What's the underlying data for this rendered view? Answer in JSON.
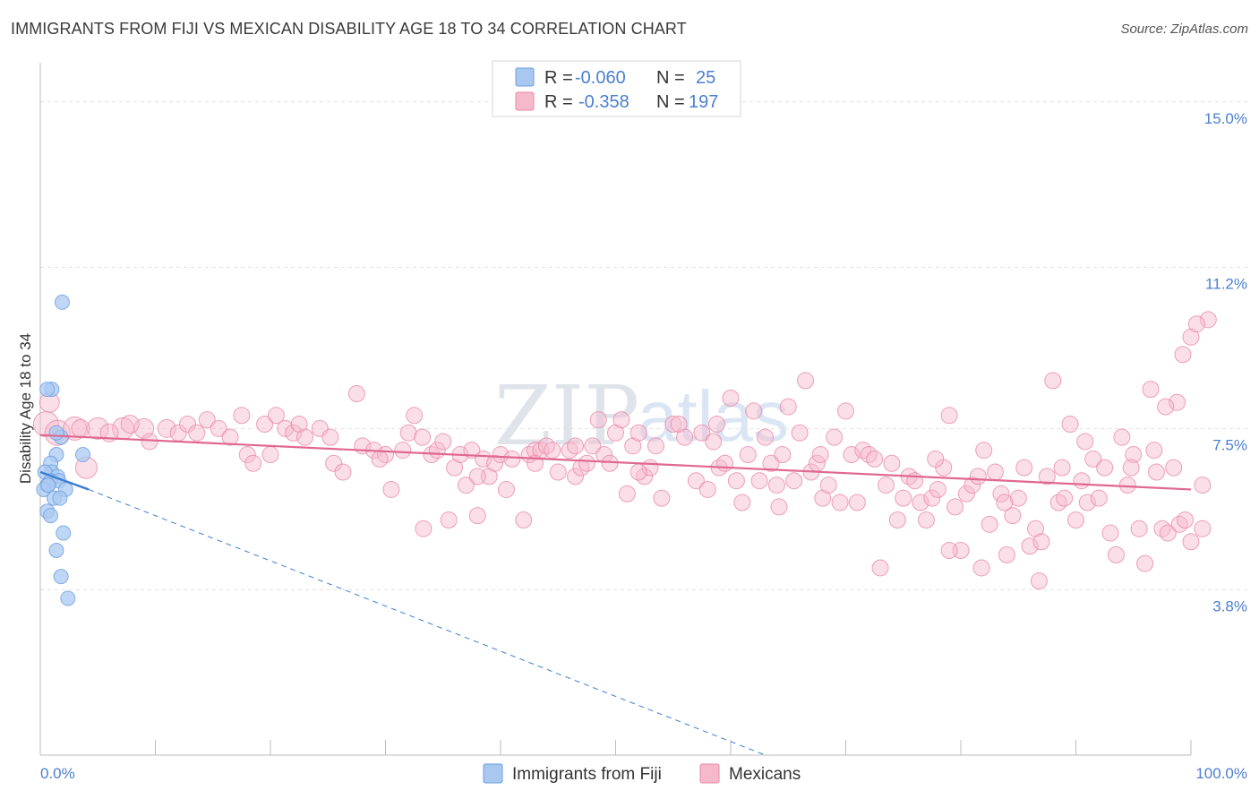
{
  "title": "IMMIGRANTS FROM FIJI VS MEXICAN DISABILITY AGE 18 TO 34 CORRELATION CHART",
  "source": "Source: ZipAtlas.com",
  "watermark": {
    "zip": "ZIP",
    "atlas": "atlas"
  },
  "stats_box": {
    "rows": [
      {
        "r_label": "R =",
        "r_value": "-0.060",
        "n_label": "N =",
        "n_value": "25",
        "color": "#a9c8f0",
        "stroke": "#6a9ee0"
      },
      {
        "r_label": "R =",
        "r_value": "-0.358",
        "n_label": "N =",
        "n_value": "197",
        "color": "#f6b8cb",
        "stroke": "#ea8aa8"
      }
    ]
  },
  "legend": {
    "items": [
      {
        "label": "Immigrants from Fiji",
        "color": "#a9c8f0",
        "stroke": "#6a9ee0"
      },
      {
        "label": "Mexicans",
        "color": "#f6b8cb",
        "stroke": "#ea8aa8"
      }
    ]
  },
  "chart_data": {
    "type": "scatter",
    "title": "IMMIGRANTS FROM FIJI VS MEXICAN DISABILITY AGE 18 TO 34 CORRELATION CHART",
    "xlabel": "",
    "ylabel": "Disability Age 18 to 34",
    "xlim": [
      0,
      100
    ],
    "ylim": [
      0,
      15.9
    ],
    "x_tick_labels": [
      "0.0%",
      "100.0%"
    ],
    "y_ticks": [
      3.8,
      7.5,
      11.2,
      15.0
    ],
    "y_tick_labels": [
      "3.8%",
      "7.5%",
      "11.2%",
      "15.0%"
    ],
    "grid": true,
    "legend_position": "bottom-center",
    "series": [
      {
        "name": "Immigrants from Fiji",
        "color": "#a9c8f0",
        "stroke": "#6a9ee0",
        "trend_color": "#3b7fd6",
        "R": -0.06,
        "N": 25,
        "trend": {
          "x0": 0,
          "y0": 6.5,
          "x1": 4.2,
          "y1": 6.1,
          "dashed_to_x": 63,
          "dashed_to_y": 0
        },
        "points": [
          [
            1.9,
            10.4
          ],
          [
            1.0,
            8.4
          ],
          [
            0.6,
            8.4
          ],
          [
            1.8,
            7.3
          ],
          [
            1.4,
            7.4
          ],
          [
            3.7,
            6.9
          ],
          [
            1.4,
            6.9
          ],
          [
            0.9,
            6.7
          ],
          [
            1.0,
            6.5
          ],
          [
            0.4,
            6.5
          ],
          [
            1.5,
            6.4
          ],
          [
            0.9,
            6.3
          ],
          [
            1.6,
            6.3
          ],
          [
            0.6,
            6.2
          ],
          [
            2.2,
            6.1
          ],
          [
            0.3,
            6.1
          ],
          [
            0.7,
            6.2
          ],
          [
            1.2,
            5.9
          ],
          [
            1.7,
            5.9
          ],
          [
            0.6,
            5.6
          ],
          [
            0.9,
            5.5
          ],
          [
            2.0,
            5.1
          ],
          [
            1.4,
            4.7
          ],
          [
            1.8,
            4.1
          ],
          [
            2.4,
            3.6
          ]
        ]
      },
      {
        "name": "Mexicans",
        "color": "#f6b8cb",
        "stroke": "#ea8aa8",
        "trend_color": "#e06890",
        "R": -0.358,
        "N": 197,
        "trend": {
          "x0": 0,
          "y0": 7.35,
          "x1": 100,
          "y1": 6.1
        },
        "points": [
          [
            0.5,
            7.6,
            14
          ],
          [
            1.5,
            7.4,
            14
          ],
          [
            3.0,
            7.5,
            13
          ],
          [
            5.0,
            7.5,
            12
          ],
          [
            7.2,
            7.5,
            12
          ],
          [
            9.0,
            7.5,
            11
          ],
          [
            0.8,
            8.1,
            11
          ],
          [
            4.0,
            6.6,
            12
          ],
          [
            3.5,
            7.5,
            10
          ],
          [
            6.0,
            7.4,
            10
          ],
          [
            7.8,
            7.6,
            10
          ],
          [
            9.5,
            7.2,
            9
          ],
          [
            11.0,
            7.5,
            10
          ],
          [
            12.0,
            7.4,
            9
          ],
          [
            12.8,
            7.6,
            9
          ],
          [
            13.6,
            7.4,
            9
          ],
          [
            14.5,
            7.7,
            9
          ],
          [
            15.5,
            7.5,
            9
          ],
          [
            16.5,
            7.3,
            9
          ],
          [
            17.5,
            7.8,
            9
          ],
          [
            18.0,
            6.9,
            9
          ],
          [
            18.5,
            6.7,
            9
          ],
          [
            19.5,
            7.6,
            9
          ],
          [
            20.0,
            6.9,
            9
          ],
          [
            20.5,
            7.8,
            9
          ],
          [
            21.3,
            7.5,
            9
          ],
          [
            22.0,
            7.4,
            9
          ],
          [
            22.5,
            7.6,
            9
          ],
          [
            23.0,
            7.3,
            9
          ],
          [
            24.3,
            7.5,
            9
          ],
          [
            25.2,
            7.3,
            9
          ],
          [
            25.5,
            6.7,
            9
          ],
          [
            26.3,
            6.5,
            9
          ],
          [
            27.5,
            8.3,
            9
          ],
          [
            28.0,
            7.1,
            9
          ],
          [
            29.0,
            7.0,
            9
          ],
          [
            30.0,
            6.9,
            9
          ],
          [
            30.5,
            6.1,
            9
          ],
          [
            31.5,
            7.0,
            9
          ],
          [
            32.0,
            7.4,
            9
          ],
          [
            32.5,
            7.8,
            9
          ],
          [
            33.2,
            7.3,
            9
          ],
          [
            34.0,
            6.9,
            9
          ],
          [
            34.5,
            7.0,
            9
          ],
          [
            35.0,
            7.2,
            9
          ],
          [
            35.5,
            5.4,
            9
          ],
          [
            36.0,
            6.6,
            9
          ],
          [
            36.5,
            6.9,
            9
          ],
          [
            37.0,
            6.2,
            9
          ],
          [
            37.5,
            7.0,
            9
          ],
          [
            38.0,
            5.5,
            9
          ],
          [
            38.5,
            6.8,
            9
          ],
          [
            39.0,
            6.4,
            9
          ],
          [
            39.5,
            6.7,
            9
          ],
          [
            40.0,
            6.9,
            9
          ],
          [
            40.5,
            6.1,
            9
          ],
          [
            41.0,
            6.8,
            9
          ],
          [
            42.0,
            5.4,
            9
          ],
          [
            42.5,
            6.9,
            9
          ],
          [
            43.0,
            7.0,
            9
          ],
          [
            43.5,
            7.0,
            9
          ],
          [
            44.0,
            7.1,
            9
          ],
          [
            44.5,
            7.0,
            9
          ],
          [
            45.0,
            6.5,
            9
          ],
          [
            46.0,
            7.0,
            9
          ],
          [
            46.5,
            6.4,
            9
          ],
          [
            47.0,
            6.6,
            9
          ],
          [
            47.5,
            6.7,
            9
          ],
          [
            48.0,
            7.1,
            9
          ],
          [
            48.5,
            7.7,
            9
          ],
          [
            49.0,
            6.9,
            9
          ],
          [
            49.5,
            6.7,
            9
          ],
          [
            50.0,
            7.4,
            9
          ],
          [
            50.5,
            7.7,
            9
          ],
          [
            51.0,
            6.0,
            9
          ],
          [
            51.5,
            7.1,
            9
          ],
          [
            52.0,
            7.4,
            9
          ],
          [
            52.5,
            6.4,
            9
          ],
          [
            53.0,
            6.6,
            9
          ],
          [
            53.5,
            7.1,
            9
          ],
          [
            54.0,
            5.9,
            9
          ],
          [
            55.0,
            7.6,
            9
          ],
          [
            55.5,
            7.6,
            9
          ],
          [
            56.0,
            7.3,
            9
          ],
          [
            57.0,
            6.3,
            9
          ],
          [
            57.5,
            7.4,
            9
          ],
          [
            58.0,
            6.1,
            9
          ],
          [
            58.5,
            7.2,
            9
          ],
          [
            59.0,
            6.6,
            9
          ],
          [
            59.5,
            6.7,
            9
          ],
          [
            60.0,
            8.2,
            9
          ],
          [
            60.5,
            6.3,
            9
          ],
          [
            61.0,
            5.8,
            9
          ],
          [
            61.5,
            6.9,
            9
          ],
          [
            62.0,
            7.9,
            9
          ],
          [
            62.5,
            6.3,
            9
          ],
          [
            63.0,
            7.3,
            9
          ],
          [
            63.5,
            6.7,
            9
          ],
          [
            64.0,
            6.2,
            9
          ],
          [
            64.5,
            6.9,
            9
          ],
          [
            65.0,
            8.0,
            9
          ],
          [
            65.5,
            6.3,
            9
          ],
          [
            66.0,
            7.4,
            9
          ],
          [
            66.5,
            8.6,
            9
          ],
          [
            67.0,
            6.5,
            9
          ],
          [
            67.5,
            6.7,
            9
          ],
          [
            68.0,
            5.9,
            9
          ],
          [
            68.5,
            6.2,
            9
          ],
          [
            69.0,
            7.3,
            9
          ],
          [
            69.5,
            5.8,
            9
          ],
          [
            70.0,
            7.9,
            9
          ],
          [
            70.5,
            6.9,
            9
          ],
          [
            71.0,
            5.8,
            9
          ],
          [
            71.5,
            7.0,
            9
          ],
          [
            72.0,
            6.9,
            9
          ],
          [
            73.0,
            4.3,
            9
          ],
          [
            73.5,
            6.2,
            9
          ],
          [
            74.0,
            6.7,
            9
          ],
          [
            74.5,
            5.4,
            9
          ],
          [
            75.0,
            5.9,
            9
          ],
          [
            75.5,
            6.4,
            9
          ],
          [
            76.0,
            6.3,
            9
          ],
          [
            76.5,
            5.8,
            9
          ],
          [
            77.0,
            5.4,
            9
          ],
          [
            77.5,
            5.9,
            9
          ],
          [
            78.0,
            6.1,
            9
          ],
          [
            78.5,
            6.6,
            9
          ],
          [
            79.0,
            7.8,
            9
          ],
          [
            79.5,
            5.7,
            9
          ],
          [
            80.0,
            4.7,
            9
          ],
          [
            80.5,
            6.0,
            9
          ],
          [
            81.0,
            6.2,
            9
          ],
          [
            81.5,
            6.4,
            9
          ],
          [
            82.0,
            7.0,
            9
          ],
          [
            82.5,
            5.3,
            9
          ],
          [
            83.0,
            6.5,
            9
          ],
          [
            83.5,
            6.0,
            9
          ],
          [
            84.0,
            4.6,
            9
          ],
          [
            84.5,
            5.5,
            9
          ],
          [
            85.0,
            5.9,
            9
          ],
          [
            85.5,
            6.6,
            9
          ],
          [
            86.0,
            4.8,
            9
          ],
          [
            86.5,
            5.2,
            9
          ],
          [
            87.0,
            4.9,
            9
          ],
          [
            87.5,
            6.4,
            9
          ],
          [
            88.0,
            8.6,
            9
          ],
          [
            88.5,
            5.8,
            9
          ],
          [
            89.0,
            5.9,
            9
          ],
          [
            89.5,
            7.6,
            9
          ],
          [
            90.0,
            5.4,
            9
          ],
          [
            90.5,
            6.3,
            9
          ],
          [
            91.0,
            5.8,
            9
          ],
          [
            91.5,
            6.8,
            9
          ],
          [
            92.0,
            5.9,
            9
          ],
          [
            92.5,
            6.6,
            9
          ],
          [
            93.0,
            5.1,
            9
          ],
          [
            93.5,
            4.6,
            9
          ],
          [
            94.0,
            7.3,
            9
          ],
          [
            94.5,
            6.2,
            9
          ],
          [
            95.0,
            6.9,
            9
          ],
          [
            95.5,
            5.2,
            9
          ],
          [
            96.0,
            4.4,
            9
          ],
          [
            96.5,
            8.4,
            9
          ],
          [
            97.0,
            6.5,
            9
          ],
          [
            97.5,
            5.2,
            9
          ],
          [
            98.0,
            5.1,
            9
          ],
          [
            98.5,
            6.6,
            9
          ],
          [
            99.0,
            5.3,
            9
          ],
          [
            99.5,
            5.4,
            9
          ],
          [
            100.0,
            4.9,
            9
          ],
          [
            33.3,
            5.2,
            9
          ],
          [
            29.5,
            6.8,
            9
          ],
          [
            43.0,
            6.7,
            9
          ],
          [
            38.0,
            6.4,
            9
          ],
          [
            46.5,
            7.1,
            9
          ],
          [
            52.0,
            6.5,
            9
          ],
          [
            58.8,
            7.6,
            9
          ],
          [
            64.2,
            5.7,
            9
          ],
          [
            67.8,
            6.9,
            9
          ],
          [
            72.5,
            6.8,
            9
          ],
          [
            77.8,
            6.8,
            9
          ],
          [
            83.8,
            5.8,
            9
          ],
          [
            88.8,
            6.6,
            9
          ],
          [
            94.8,
            6.6,
            9
          ],
          [
            98.8,
            8.1,
            9
          ],
          [
            100.0,
            9.6,
            9
          ],
          [
            101.5,
            10.0,
            9
          ],
          [
            100.5,
            9.9,
            9
          ],
          [
            99.3,
            9.2,
            9
          ],
          [
            101.0,
            6.2,
            9
          ],
          [
            101.0,
            5.2,
            9
          ],
          [
            97.8,
            8.0,
            9
          ],
          [
            96.8,
            7.0,
            9
          ],
          [
            90.8,
            7.2,
            9
          ],
          [
            86.8,
            4.0,
            9
          ],
          [
            81.8,
            4.3,
            9
          ],
          [
            79.0,
            4.7,
            9
          ]
        ]
      }
    ]
  },
  "axis": {
    "y_label": "Disability Age 18 to 34",
    "x_labels": [
      "0.0%",
      "100.0%"
    ],
    "y_labels": [
      "3.8%",
      "7.5%",
      "11.2%",
      "15.0%"
    ]
  }
}
